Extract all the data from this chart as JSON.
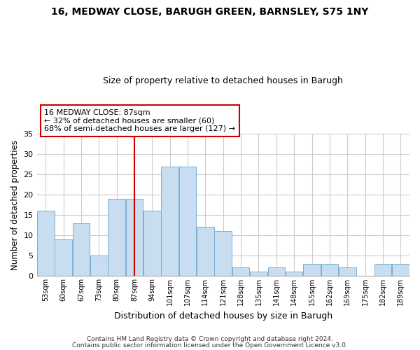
{
  "title": "16, MEDWAY CLOSE, BARUGH GREEN, BARNSLEY, S75 1NY",
  "subtitle": "Size of property relative to detached houses in Barugh",
  "xlabel": "Distribution of detached houses by size in Barugh",
  "ylabel": "Number of detached properties",
  "bins": [
    "53sqm",
    "60sqm",
    "67sqm",
    "73sqm",
    "80sqm",
    "87sqm",
    "94sqm",
    "101sqm",
    "107sqm",
    "114sqm",
    "121sqm",
    "128sqm",
    "135sqm",
    "141sqm",
    "148sqm",
    "155sqm",
    "162sqm",
    "169sqm",
    "175sqm",
    "182sqm",
    "189sqm"
  ],
  "values": [
    16,
    9,
    13,
    5,
    19,
    19,
    16,
    27,
    27,
    12,
    11,
    2,
    1,
    2,
    1,
    3,
    3,
    2,
    0,
    3,
    3
  ],
  "bar_color": "#c9ddf0",
  "bar_edge_color": "#7aafd4",
  "vline_x_index": 5,
  "vline_color": "#cc0000",
  "ylim": [
    0,
    35
  ],
  "yticks": [
    0,
    5,
    10,
    15,
    20,
    25,
    30,
    35
  ],
  "annotation_text": "16 MEDWAY CLOSE: 87sqm\n← 32% of detached houses are smaller (60)\n68% of semi-detached houses are larger (127) →",
  "annotation_box_color": "#ffffff",
  "annotation_box_edge_color": "#cc0000",
  "footer1": "Contains HM Land Registry data © Crown copyright and database right 2024.",
  "footer2": "Contains public sector information licensed under the Open Government Licence v3.0.",
  "background_color": "#ffffff",
  "grid_color": "#cccccc"
}
